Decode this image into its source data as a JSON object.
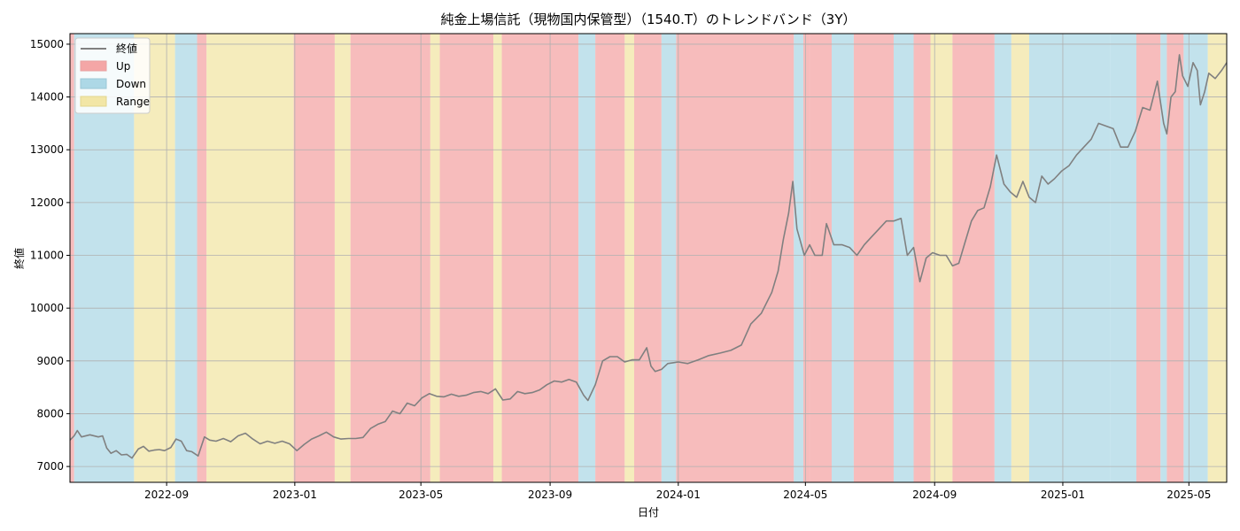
{
  "chart_data": {
    "type": "line",
    "title": "純金上場信託（現物国内保管型）（1540.T）のトレンドバンド（3Y）",
    "xlabel": "日付",
    "ylabel": "終値",
    "xlim": [
      "2022-06-01",
      "2025-06-06"
    ],
    "ylim": [
      6700,
      15200
    ],
    "x_ticks": [
      "2022-09-01",
      "2023-01-01",
      "2023-05-01",
      "2023-09-01",
      "2024-01-01",
      "2024-05-01",
      "2024-09-01",
      "2025-01-01",
      "2025-05-01"
    ],
    "x_tick_labels": [
      "2022-09",
      "2023-01",
      "2023-05",
      "2023-09",
      "2024-01",
      "2024-05",
      "2024-09",
      "2025-01",
      "2025-05"
    ],
    "y_ticks": [
      7000,
      8000,
      9000,
      10000,
      11000,
      12000,
      13000,
      14000,
      15000
    ],
    "y_tick_labels": [
      "7000",
      "8000",
      "9000",
      "10000",
      "11000",
      "12000",
      "13000",
      "14000",
      "15000"
    ],
    "grid": true,
    "legend_position": "top-left",
    "series": [
      {
        "name": "終値",
        "color": "#808080",
        "points": [
          [
            "2022-06-01",
            7500
          ],
          [
            "2022-06-05",
            7580
          ],
          [
            "2022-06-08",
            7680
          ],
          [
            "2022-06-12",
            7560
          ],
          [
            "2022-06-20",
            7600
          ],
          [
            "2022-06-28",
            7560
          ],
          [
            "2022-07-02",
            7580
          ],
          [
            "2022-07-06",
            7350
          ],
          [
            "2022-07-10",
            7250
          ],
          [
            "2022-07-15",
            7300
          ],
          [
            "2022-07-20",
            7220
          ],
          [
            "2022-07-25",
            7230
          ],
          [
            "2022-07-30",
            7160
          ],
          [
            "2022-08-05",
            7330
          ],
          [
            "2022-08-10",
            7380
          ],
          [
            "2022-08-15",
            7290
          ],
          [
            "2022-08-20",
            7310
          ],
          [
            "2022-08-25",
            7320
          ],
          [
            "2022-08-30",
            7300
          ],
          [
            "2022-09-05",
            7360
          ],
          [
            "2022-09-10",
            7520
          ],
          [
            "2022-09-15",
            7480
          ],
          [
            "2022-09-20",
            7300
          ],
          [
            "2022-09-25",
            7280
          ],
          [
            "2022-10-01",
            7200
          ],
          [
            "2022-10-07",
            7560
          ],
          [
            "2022-10-12",
            7500
          ],
          [
            "2022-10-18",
            7480
          ],
          [
            "2022-10-25",
            7530
          ],
          [
            "2022-11-01",
            7470
          ],
          [
            "2022-11-08",
            7580
          ],
          [
            "2022-11-15",
            7630
          ],
          [
            "2022-11-22",
            7520
          ],
          [
            "2022-11-29",
            7430
          ],
          [
            "2022-12-06",
            7480
          ],
          [
            "2022-12-13",
            7440
          ],
          [
            "2022-12-20",
            7480
          ],
          [
            "2022-12-27",
            7430
          ],
          [
            "2023-01-03",
            7300
          ],
          [
            "2023-01-10",
            7420
          ],
          [
            "2023-01-17",
            7520
          ],
          [
            "2023-01-24",
            7580
          ],
          [
            "2023-01-31",
            7650
          ],
          [
            "2023-02-07",
            7560
          ],
          [
            "2023-02-14",
            7520
          ],
          [
            "2023-02-21",
            7530
          ],
          [
            "2023-02-28",
            7530
          ],
          [
            "2023-03-07",
            7550
          ],
          [
            "2023-03-14",
            7720
          ],
          [
            "2023-03-21",
            7800
          ],
          [
            "2023-03-28",
            7850
          ],
          [
            "2023-04-04",
            8050
          ],
          [
            "2023-04-11",
            8000
          ],
          [
            "2023-04-18",
            8200
          ],
          [
            "2023-04-25",
            8150
          ],
          [
            "2023-05-02",
            8300
          ],
          [
            "2023-05-09",
            8380
          ],
          [
            "2023-05-16",
            8330
          ],
          [
            "2023-05-23",
            8320
          ],
          [
            "2023-05-30",
            8370
          ],
          [
            "2023-06-06",
            8330
          ],
          [
            "2023-06-13",
            8350
          ],
          [
            "2023-06-20",
            8400
          ],
          [
            "2023-06-27",
            8420
          ],
          [
            "2023-07-04",
            8380
          ],
          [
            "2023-07-11",
            8470
          ],
          [
            "2023-07-18",
            8260
          ],
          [
            "2023-07-25",
            8280
          ],
          [
            "2023-08-01",
            8420
          ],
          [
            "2023-08-08",
            8380
          ],
          [
            "2023-08-15",
            8400
          ],
          [
            "2023-08-22",
            8450
          ],
          [
            "2023-08-29",
            8550
          ],
          [
            "2023-09-05",
            8620
          ],
          [
            "2023-09-12",
            8600
          ],
          [
            "2023-09-19",
            8650
          ],
          [
            "2023-09-26",
            8600
          ],
          [
            "2023-10-03",
            8350
          ],
          [
            "2023-10-07",
            8250
          ],
          [
            "2023-10-14",
            8550
          ],
          [
            "2023-10-21",
            9000
          ],
          [
            "2023-10-28",
            9080
          ],
          [
            "2023-11-04",
            9080
          ],
          [
            "2023-11-11",
            8980
          ],
          [
            "2023-11-18",
            9020
          ],
          [
            "2023-11-25",
            9020
          ],
          [
            "2023-12-02",
            9250
          ],
          [
            "2023-12-06",
            8900
          ],
          [
            "2023-12-10",
            8800
          ],
          [
            "2023-12-16",
            8840
          ],
          [
            "2023-12-22",
            8950
          ],
          [
            "2024-01-01",
            8980
          ],
          [
            "2024-01-10",
            8950
          ],
          [
            "2024-01-20",
            9020
          ],
          [
            "2024-01-30",
            9100
          ],
          [
            "2024-02-10",
            9150
          ],
          [
            "2024-02-20",
            9200
          ],
          [
            "2024-03-01",
            9300
          ],
          [
            "2024-03-10",
            9700
          ],
          [
            "2024-03-20",
            9900
          ],
          [
            "2024-03-30",
            10300
          ],
          [
            "2024-04-05",
            10700
          ],
          [
            "2024-04-10",
            11300
          ],
          [
            "2024-04-15",
            11800
          ],
          [
            "2024-04-19",
            12400
          ],
          [
            "2024-04-23",
            11500
          ],
          [
            "2024-04-30",
            11000
          ],
          [
            "2024-05-05",
            11200
          ],
          [
            "2024-05-10",
            11000
          ],
          [
            "2024-05-17",
            11000
          ],
          [
            "2024-05-21",
            11600
          ],
          [
            "2024-05-28",
            11200
          ],
          [
            "2024-06-05",
            11200
          ],
          [
            "2024-06-12",
            11150
          ],
          [
            "2024-06-19",
            11000
          ],
          [
            "2024-06-26",
            11200
          ],
          [
            "2024-07-03",
            11350
          ],
          [
            "2024-07-10",
            11500
          ],
          [
            "2024-07-17",
            11650
          ],
          [
            "2024-07-24",
            11650
          ],
          [
            "2024-07-31",
            11700
          ],
          [
            "2024-08-06",
            11000
          ],
          [
            "2024-08-12",
            11150
          ],
          [
            "2024-08-18",
            10500
          ],
          [
            "2024-08-24",
            10950
          ],
          [
            "2024-08-30",
            11050
          ],
          [
            "2024-09-06",
            11000
          ],
          [
            "2024-09-12",
            11000
          ],
          [
            "2024-09-18",
            10800
          ],
          [
            "2024-09-24",
            10850
          ],
          [
            "2024-09-30",
            11250
          ],
          [
            "2024-10-06",
            11650
          ],
          [
            "2024-10-12",
            11850
          ],
          [
            "2024-10-18",
            11900
          ],
          [
            "2024-10-24",
            12300
          ],
          [
            "2024-10-30",
            12900
          ],
          [
            "2024-11-06",
            12350
          ],
          [
            "2024-11-12",
            12200
          ],
          [
            "2024-11-18",
            12100
          ],
          [
            "2024-11-24",
            12400
          ],
          [
            "2024-11-30",
            12100
          ],
          [
            "2024-12-06",
            12000
          ],
          [
            "2024-12-12",
            12500
          ],
          [
            "2024-12-18",
            12350
          ],
          [
            "2024-12-24",
            12450
          ],
          [
            "2024-12-31",
            12600
          ],
          [
            "2025-01-07",
            12700
          ],
          [
            "2025-01-14",
            12900
          ],
          [
            "2025-01-21",
            13050
          ],
          [
            "2025-01-28",
            13200
          ],
          [
            "2025-02-04",
            13500
          ],
          [
            "2025-02-11",
            13450
          ],
          [
            "2025-02-18",
            13400
          ],
          [
            "2025-02-25",
            13050
          ],
          [
            "2025-03-04",
            13050
          ],
          [
            "2025-03-11",
            13350
          ],
          [
            "2025-03-18",
            13800
          ],
          [
            "2025-03-25",
            13750
          ],
          [
            "2025-04-01",
            14300
          ],
          [
            "2025-04-07",
            13500
          ],
          [
            "2025-04-10",
            13300
          ],
          [
            "2025-04-14",
            14000
          ],
          [
            "2025-04-18",
            14100
          ],
          [
            "2025-04-22",
            14800
          ],
          [
            "2025-04-25",
            14400
          ],
          [
            "2025-04-30",
            14200
          ],
          [
            "2025-05-05",
            14650
          ],
          [
            "2025-05-09",
            14500
          ],
          [
            "2025-05-12",
            13850
          ],
          [
            "2025-05-16",
            14100
          ],
          [
            "2025-05-20",
            14450
          ],
          [
            "2025-05-26",
            14350
          ],
          [
            "2025-06-01",
            14500
          ],
          [
            "2025-06-06",
            14650
          ]
        ]
      }
    ],
    "bands": [
      {
        "name": "Up",
        "color": "#f4a6a6"
      },
      {
        "name": "Down",
        "color": "#add8e6"
      },
      {
        "name": "Range",
        "color": "#f2e6a6"
      }
    ],
    "band_segments": [
      {
        "start": "2022-06-01",
        "end": "2022-06-05",
        "type": "Up"
      },
      {
        "start": "2022-06-05",
        "end": "2022-08-01",
        "type": "Down"
      },
      {
        "start": "2022-08-01",
        "end": "2022-09-09",
        "type": "Range"
      },
      {
        "start": "2022-09-09",
        "end": "2022-09-30",
        "type": "Down"
      },
      {
        "start": "2022-09-30",
        "end": "2022-10-09",
        "type": "Up"
      },
      {
        "start": "2022-10-09",
        "end": "2022-12-31",
        "type": "Range"
      },
      {
        "start": "2022-12-31",
        "end": "2023-02-08",
        "type": "Up"
      },
      {
        "start": "2023-02-08",
        "end": "2023-02-23",
        "type": "Range"
      },
      {
        "start": "2023-02-23",
        "end": "2023-05-10",
        "type": "Up"
      },
      {
        "start": "2023-05-10",
        "end": "2023-05-19",
        "type": "Range"
      },
      {
        "start": "2023-05-19",
        "end": "2023-07-09",
        "type": "Up"
      },
      {
        "start": "2023-07-09",
        "end": "2023-07-17",
        "type": "Range"
      },
      {
        "start": "2023-07-17",
        "end": "2023-09-28",
        "type": "Up"
      },
      {
        "start": "2023-09-28",
        "end": "2023-10-14",
        "type": "Down"
      },
      {
        "start": "2023-10-14",
        "end": "2023-11-11",
        "type": "Up"
      },
      {
        "start": "2023-11-11",
        "end": "2023-11-20",
        "type": "Range"
      },
      {
        "start": "2023-11-20",
        "end": "2023-12-16",
        "type": "Up"
      },
      {
        "start": "2023-12-16",
        "end": "2023-12-30",
        "type": "Down"
      },
      {
        "start": "2023-12-30",
        "end": "2024-04-20",
        "type": "Up"
      },
      {
        "start": "2024-04-20",
        "end": "2024-04-29",
        "type": "Down"
      },
      {
        "start": "2024-04-29",
        "end": "2024-05-05",
        "type": "Up"
      },
      {
        "start": "2024-05-05",
        "end": "2024-05-26",
        "type": "Up"
      },
      {
        "start": "2024-05-26",
        "end": "2024-06-16",
        "type": "Down"
      },
      {
        "start": "2024-06-16",
        "end": "2024-07-24",
        "type": "Up"
      },
      {
        "start": "2024-07-24",
        "end": "2024-08-12",
        "type": "Down"
      },
      {
        "start": "2024-08-12",
        "end": "2024-08-28",
        "type": "Up"
      },
      {
        "start": "2024-08-28",
        "end": "2024-09-18",
        "type": "Range"
      },
      {
        "start": "2024-09-18",
        "end": "2024-10-28",
        "type": "Up"
      },
      {
        "start": "2024-10-28",
        "end": "2024-11-13",
        "type": "Down"
      },
      {
        "start": "2024-11-13",
        "end": "2024-11-30",
        "type": "Range"
      },
      {
        "start": "2024-11-30",
        "end": "2025-02-15",
        "type": "Down"
      },
      {
        "start": "2025-02-15",
        "end": "2025-03-12",
        "type": "Down"
      },
      {
        "start": "2025-03-12",
        "end": "2025-04-04",
        "type": "Up"
      },
      {
        "start": "2025-04-04",
        "end": "2025-04-10",
        "type": "Down"
      },
      {
        "start": "2025-04-10",
        "end": "2025-04-26",
        "type": "Up"
      },
      {
        "start": "2025-04-26",
        "end": "2025-05-19",
        "type": "Down"
      },
      {
        "start": "2025-05-19",
        "end": "2025-06-06",
        "type": "Range"
      }
    ]
  }
}
